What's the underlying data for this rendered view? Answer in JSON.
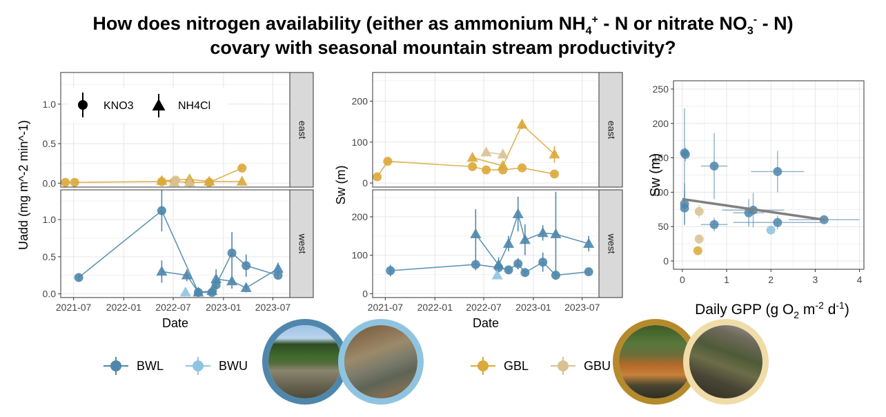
{
  "title": {
    "line1_pre": "How does nitrogen availability (either as ammonium  NH",
    "nh4_sub": "4",
    "nh4_sup": "+",
    "line1_mid": " - N or nitrate NO",
    "no3_sub": "3",
    "no3_sup": "-",
    "line1_post": " - N)",
    "line2": "covary with seasonal mountain stream productivity?"
  },
  "colors": {
    "BWL": "#4f87ac",
    "BWU": "#8fc4e0",
    "GBL": "#dba93a",
    "GBU": "#d8c291",
    "fit": "#808080"
  },
  "legend_shape": {
    "KNO3": "KNO3",
    "NH4Cl": "NH4Cl"
  },
  "legend_site": {
    "west": [
      {
        "name": "BWL",
        "color": "#4f87ac"
      },
      {
        "name": "BWU",
        "color": "#8fc4e0"
      }
    ],
    "east": [
      {
        "name": "GBL",
        "color": "#dba93a"
      },
      {
        "name": "GBU",
        "color": "#d8c291"
      }
    ]
  },
  "photos": {
    "bwl": {
      "label": "",
      "color": "#4f87ac",
      "style": "forest-stream"
    },
    "bwu": {
      "label": "",
      "color": "#8fc4e0",
      "style": "willow-stream"
    },
    "gbl": {
      "label": "",
      "color": "#b58a2b",
      "style": "orange-stream"
    },
    "gbu": {
      "label": "",
      "color": "#f0dca8",
      "style": "brush-stream"
    }
  },
  "chart_data": [
    {
      "type": "scatter",
      "id": "uadd",
      "xlabel": "Date",
      "ylabel": "Uadd (mg m^-2 min^-1)",
      "x_ticks": [
        "2021-07",
        "2022-01",
        "2022-07",
        "2023-01",
        "2023-07"
      ],
      "xlim": [
        "2021-05-15",
        "2023-09-01"
      ],
      "facets": [
        {
          "strip": "east",
          "ylim": [
            -0.05,
            1.4
          ],
          "y_ticks": [
            0.0,
            0.5,
            1.0
          ],
          "series": [
            {
              "site": "GBL",
              "tracer": "KNO3",
              "connected": true,
              "points": [
                {
                  "x": "2021-06-01",
                  "y": 0.01
                },
                {
                  "x": "2021-07-05",
                  "y": 0.01
                },
                {
                  "x": "2022-05-20",
                  "y": 0.02
                },
                {
                  "x": "2022-07-05",
                  "y": 0.02
                },
                {
                  "x": "2022-08-30",
                  "y": 0.01
                },
                {
                  "x": "2022-11-10",
                  "y": 0.01
                },
                {
                  "x": "2023-03-10",
                  "y": 0.19
                }
              ]
            },
            {
              "site": "GBL",
              "tracer": "NH4Cl",
              "connected": true,
              "points": [
                {
                  "x": "2022-05-20",
                  "y": 0.03
                },
                {
                  "x": "2022-08-30",
                  "y": 0.05
                },
                {
                  "x": "2022-11-10",
                  "y": 0.02
                },
                {
                  "x": "2023-03-10",
                  "y": 0.02
                }
              ]
            },
            {
              "site": "GBU",
              "tracer": "KNO3",
              "connected": false,
              "points": [
                {
                  "x": "2022-07-10",
                  "y": 0.04
                }
              ]
            },
            {
              "site": "GBU",
              "tracer": "NH4Cl",
              "connected": false,
              "points": [
                {
                  "x": "2022-07-05",
                  "y": 0.01
                },
                {
                  "x": "2022-08-30",
                  "y": 0.01
                }
              ]
            }
          ]
        },
        {
          "strip": "west",
          "ylim": [
            -0.05,
            1.4
          ],
          "y_ticks": [
            0.0,
            0.5,
            1.0
          ],
          "series": [
            {
              "site": "BWL",
              "tracer": "KNO3",
              "connected": true,
              "points": [
                {
                  "x": "2021-07-20",
                  "y": 0.22,
                  "err": 0.04
                },
                {
                  "x": "2022-05-20",
                  "y": 1.12,
                  "err": 0.28
                },
                {
                  "x": "2022-10-01",
                  "y": 0.02,
                  "err": 0.02
                },
                {
                  "x": "2022-11-20",
                  "y": 0.02,
                  "err": 0.02
                },
                {
                  "x": "2022-12-05",
                  "y": 0.12,
                  "err": 0.1
                },
                {
                  "x": "2023-02-01",
                  "y": 0.55,
                  "err": 0.28
                },
                {
                  "x": "2023-03-25",
                  "y": 0.38,
                  "err": 0.15
                },
                {
                  "x": "2023-07-20",
                  "y": 0.25,
                  "err": 0.05
                }
              ]
            },
            {
              "site": "BWL",
              "tracer": "NH4Cl",
              "connected": true,
              "points": [
                {
                  "x": "2022-05-20",
                  "y": 0.3,
                  "err": 0.15
                },
                {
                  "x": "2022-08-20",
                  "y": 0.25,
                  "err": 0.08
                },
                {
                  "x": "2022-10-01",
                  "y": 0.02,
                  "err": 0.02
                },
                {
                  "x": "2022-11-20",
                  "y": 0.04,
                  "err": 0.03
                },
                {
                  "x": "2022-12-05",
                  "y": 0.2,
                  "err": 0.13
                },
                {
                  "x": "2023-02-01",
                  "y": 0.17,
                  "err": 0.1
                },
                {
                  "x": "2023-03-25",
                  "y": 0.08,
                  "err": 0.06
                },
                {
                  "x": "2023-07-20",
                  "y": 0.34,
                  "err": 0.08
                }
              ]
            },
            {
              "site": "BWU",
              "tracer": "NH4Cl",
              "connected": false,
              "points": [
                {
                  "x": "2022-08-15",
                  "y": 0.02
                }
              ]
            }
          ]
        }
      ]
    },
    {
      "type": "scatter",
      "id": "sw",
      "xlabel": "Date",
      "ylabel": "Sw (m)",
      "x_ticks": [
        "2021-07",
        "2022-01",
        "2022-07",
        "2023-01",
        "2023-07"
      ],
      "xlim": [
        "2021-05-15",
        "2023-09-01"
      ],
      "facets": [
        {
          "strip": "east",
          "ylim": [
            -10,
            270
          ],
          "y_ticks": [
            0,
            100,
            200
          ],
          "series": [
            {
              "site": "GBL",
              "tracer": "KNO3",
              "connected": true,
              "points": [
                {
                  "x": "2021-06-01",
                  "y": 15
                },
                {
                  "x": "2021-07-10",
                  "y": 53
                },
                {
                  "x": "2022-05-20",
                  "y": 40
                },
                {
                  "x": "2022-07-10",
                  "y": 32
                },
                {
                  "x": "2022-09-10",
                  "y": 32
                },
                {
                  "x": "2022-11-20",
                  "y": 37
                },
                {
                  "x": "2023-03-20",
                  "y": 22
                }
              ]
            },
            {
              "site": "GBL",
              "tracer": "NH4Cl",
              "connected": true,
              "points": [
                {
                  "x": "2022-05-20",
                  "y": 62
                },
                {
                  "x": "2022-09-10",
                  "y": 42
                },
                {
                  "x": "2022-11-20",
                  "y": 143,
                  "err": 12
                },
                {
                  "x": "2023-03-20",
                  "y": 70,
                  "err": 20
                }
              ]
            },
            {
              "site": "GBU",
              "tracer": "NH4Cl",
              "connected": true,
              "points": [
                {
                  "x": "2022-07-10",
                  "y": 75
                },
                {
                  "x": "2022-09-10",
                  "y": 70
                }
              ]
            }
          ]
        },
        {
          "strip": "west",
          "ylim": [
            -10,
            270
          ],
          "y_ticks": [
            0,
            100,
            200
          ],
          "series": [
            {
              "site": "BWL",
              "tracer": "KNO3",
              "connected": true,
              "points": [
                {
                  "x": "2021-07-20",
                  "y": 60,
                  "err": 15
                },
                {
                  "x": "2022-06-01",
                  "y": 76,
                  "err": 15
                },
                {
                  "x": "2022-08-25",
                  "y": 68,
                  "err": 12
                },
                {
                  "x": "2022-10-01",
                  "y": 62,
                  "err": 10
                },
                {
                  "x": "2022-11-05",
                  "y": 78,
                  "err": 15
                },
                {
                  "x": "2022-12-01",
                  "y": 55,
                  "err": 10
                },
                {
                  "x": "2023-02-05",
                  "y": 82,
                  "err": 25
                },
                {
                  "x": "2023-03-25",
                  "y": 48,
                  "err": 12
                },
                {
                  "x": "2023-07-25",
                  "y": 57,
                  "err": 8
                }
              ]
            },
            {
              "site": "BWL",
              "tracer": "NH4Cl",
              "connected": true,
              "points": [
                {
                  "x": "2022-06-01",
                  "y": 155,
                  "err": 65
                },
                {
                  "x": "2022-08-25",
                  "y": 75,
                  "err": 20
                },
                {
                  "x": "2022-10-01",
                  "y": 130,
                  "err": 20
                },
                {
                  "x": "2022-11-05",
                  "y": 207,
                  "err": 45
                },
                {
                  "x": "2022-12-01",
                  "y": 140,
                  "err": 40
                },
                {
                  "x": "2023-02-05",
                  "y": 158,
                  "err": 20
                },
                {
                  "x": "2023-03-25",
                  "y": 155,
                  "err": 110
                },
                {
                  "x": "2023-07-25",
                  "y": 130,
                  "err": 20
                }
              ]
            },
            {
              "site": "BWU",
              "tracer": "NH4Cl",
              "connected": false,
              "points": [
                {
                  "x": "2022-08-20",
                  "y": 48
                }
              ]
            }
          ]
        }
      ]
    },
    {
      "type": "scatter",
      "id": "gpp",
      "xlabel_parts": {
        "pre": "Daily GPP (g O",
        "o2_sub": "2",
        "mid": " m",
        "m_sup": "-2",
        "d": " d",
        "d_sup": "-1",
        "post": ")"
      },
      "ylabel": "Sw (m)",
      "xlim": [
        -0.2,
        4.1
      ],
      "ylim": [
        -12,
        262
      ],
      "x_ticks": [
        0,
        1,
        2,
        3,
        4
      ],
      "y_ticks": [
        0,
        50,
        100,
        150,
        200,
        250
      ],
      "trend": {
        "x1": 0.0,
        "y1": 90,
        "x2": 3.2,
        "y2": 60
      },
      "points": [
        {
          "x": 0.05,
          "y": 157,
          "site": "BWL",
          "xerr": 0.05,
          "yerr": 65
        },
        {
          "x": 0.07,
          "y": 155,
          "site": "BWL",
          "xerr": 0.05,
          "yerr": 10
        },
        {
          "x": 0.05,
          "y": 83,
          "site": "BWL",
          "xerr": 0.05,
          "yerr": 30
        },
        {
          "x": 0.05,
          "y": 77,
          "site": "BWL",
          "xerr": 0.05,
          "yerr": 25
        },
        {
          "x": 0.72,
          "y": 138,
          "site": "BWL",
          "xerr": 0.3,
          "yerr": 48
        },
        {
          "x": 0.72,
          "y": 53,
          "site": "BWL",
          "xerr": 0.3,
          "yerr": 10
        },
        {
          "x": 1.5,
          "y": 70,
          "site": "BWL",
          "xerr": 0.35,
          "yerr": 20
        },
        {
          "x": 1.6,
          "y": 74,
          "site": "BWL",
          "xerr": 0.7,
          "yerr": 25
        },
        {
          "x": 2.15,
          "y": 130,
          "site": "BWL",
          "xerr": 0.6,
          "yerr": 30
        },
        {
          "x": 2.15,
          "y": 56,
          "site": "BWL",
          "xerr": 1.0,
          "yerr": 10
        },
        {
          "x": 3.2,
          "y": 60,
          "site": "BWL",
          "xerr": 0.8,
          "yerr": 3
        },
        {
          "x": 2.0,
          "y": 45,
          "site": "BWU",
          "xerr": 0.1,
          "yerr": 5
        },
        {
          "x": 0.35,
          "y": 15,
          "site": "GBL",
          "xerr": 0.05,
          "yerr": 2
        },
        {
          "x": 0.38,
          "y": 72,
          "site": "GBU",
          "xerr": 0.07,
          "yerr": 10
        },
        {
          "x": 0.38,
          "y": 32,
          "site": "GBU",
          "xerr": 0.05,
          "yerr": 5
        }
      ]
    }
  ]
}
